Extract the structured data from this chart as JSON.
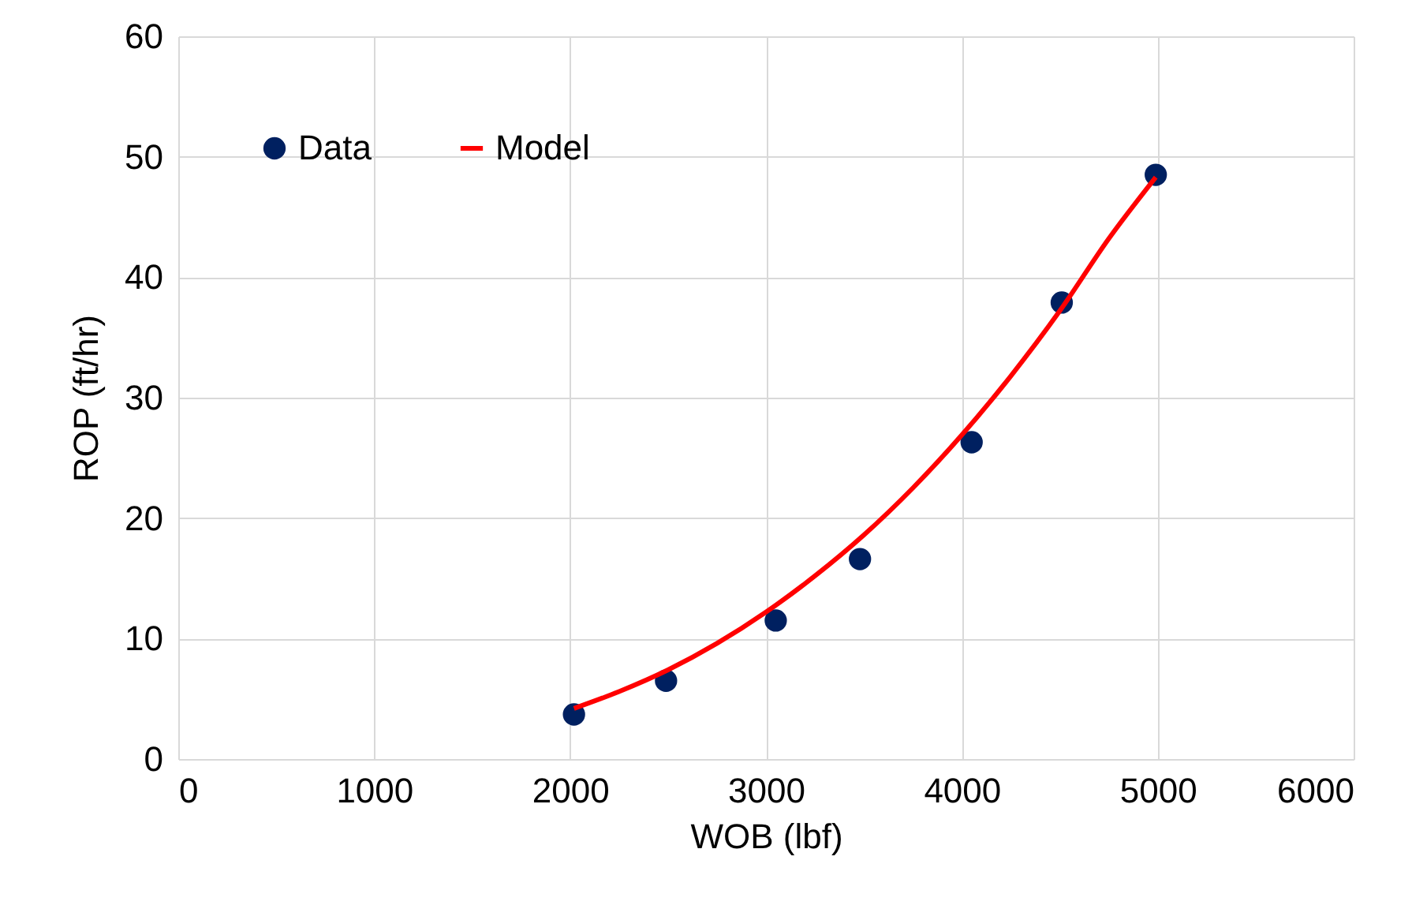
{
  "chart_data": {
    "type": "scatter",
    "xlabel": "WOB (lbf)",
    "ylabel": "ROP (ft/hr)",
    "xlim": [
      0,
      6000
    ],
    "xticks": [
      0,
      1000,
      2000,
      3000,
      4000,
      5000,
      6000
    ],
    "ylim": [
      0,
      60
    ],
    "yticks": [
      0,
      10,
      20,
      30,
      40,
      50,
      60
    ],
    "grid": true,
    "legend": "top left",
    "series": [
      {
        "name": "Data",
        "color": "#002060",
        "marker": "circle",
        "x": [
          2020,
          2490,
          3050,
          3480,
          4050,
          4510,
          4990
        ],
        "values": [
          3.7,
          6.5,
          11.5,
          16.6,
          26.3,
          37.9,
          48.5
        ]
      },
      {
        "name": "Model",
        "color": "#ff0000",
        "type": "line",
        "marker": "none",
        "line_style": "solid",
        "x": [
          2020,
          2250,
          2500,
          2750,
          3000,
          3250,
          3500,
          3750,
          4000,
          4250,
          4500,
          4750,
          4990
        ],
        "values": [
          4.2,
          5.6,
          7.4,
          9.6,
          12.2,
          15.2,
          18.6,
          22.5,
          26.9,
          31.8,
          37.2,
          43.2,
          48.3
        ]
      }
    ]
  }
}
